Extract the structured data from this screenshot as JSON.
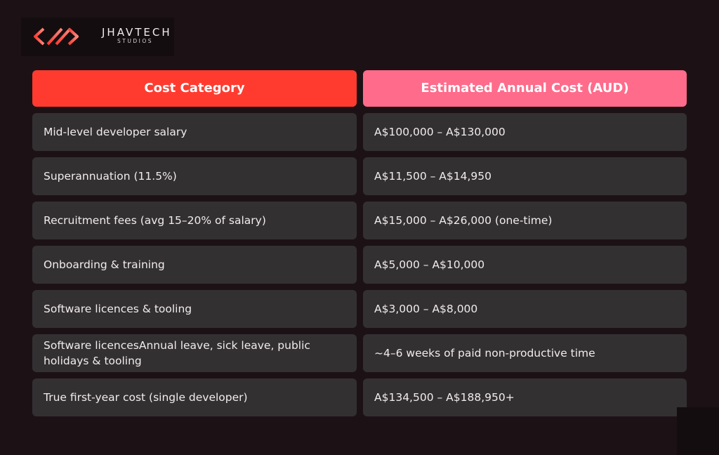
{
  "brand": {
    "name": "JHAVTECH",
    "sub": "STUDIOS",
    "colors": {
      "accent_red": "#ff3b30",
      "accent_pink": "#ff6b8b",
      "background": "#1c1216",
      "cell": "#333032"
    },
    "icon": "jhavtech-logo-icon"
  },
  "table": {
    "headers": [
      "Cost Category",
      "Estimated Annual Cost (AUD)"
    ],
    "rows": [
      {
        "category": "Mid-level developer salary",
        "cost": "A$100,000 – A$130,000"
      },
      {
        "category": "Superannuation (11.5%)",
        "cost": "A$11,500 – A$14,950"
      },
      {
        "category": "Recruitment fees (avg 15–20% of salary)",
        "cost": "A$15,000 – A$26,000 (one-time)"
      },
      {
        "category": "Onboarding & training",
        "cost": "A$5,000 – A$10,000"
      },
      {
        "category": "Software licences & tooling",
        "cost": "A$3,000 – A$8,000"
      },
      {
        "category": "Software licencesAnnual leave, sick leave, public holidays  & tooling",
        "cost": "~4–6 weeks of paid non-productive time"
      },
      {
        "category": "True first-year cost (single developer)",
        "cost": "A$134,500 – A$188,950+"
      }
    ]
  }
}
